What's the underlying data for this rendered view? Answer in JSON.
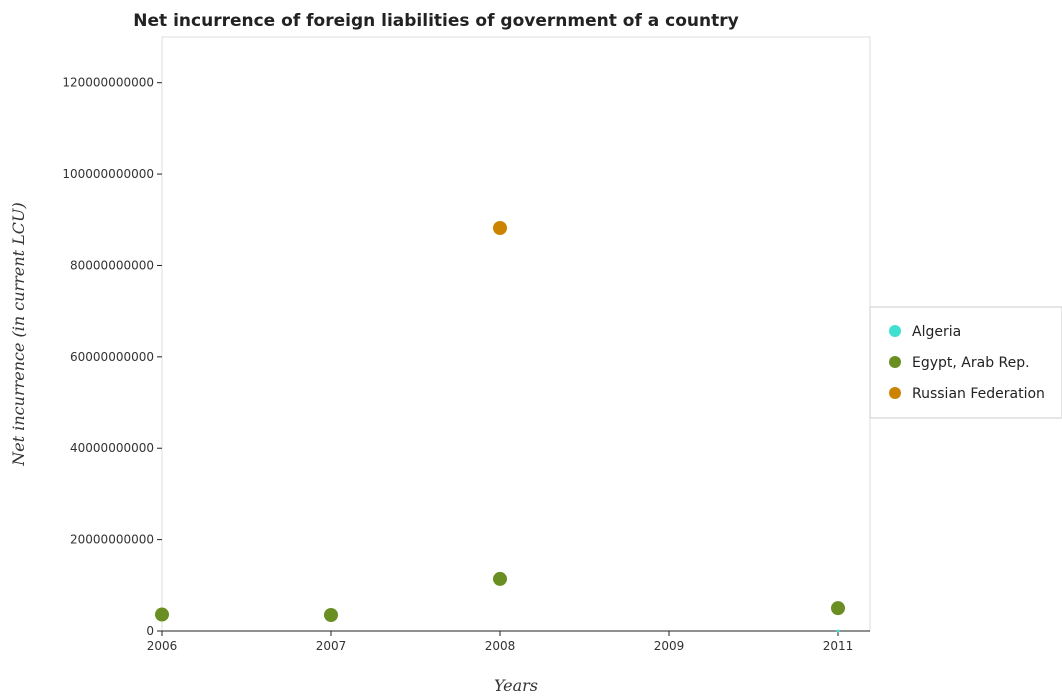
{
  "chart_data": {
    "type": "scatter",
    "title": "Net incurrence of foreign liabilities of government of a country",
    "xlabel": "Years",
    "ylabel": "Net incurrence (in current LCU)",
    "categories": [
      "2006",
      "2007",
      "2008",
      "2009",
      "2011"
    ],
    "ylim": [
      0,
      130000000000
    ],
    "yticks": [
      0,
      20000000000,
      40000000000,
      60000000000,
      80000000000,
      100000000000,
      120000000000
    ],
    "ytick_labels": [
      "0",
      "20000000000",
      "40000000000",
      "60000000000",
      "80000000000",
      "100000000000",
      "120000000000"
    ],
    "grid": false,
    "legend_position": "right",
    "series": [
      {
        "name": "Algeria",
        "color": "#40e0d0",
        "values": [
          0,
          0,
          0,
          0,
          0
        ]
      },
      {
        "name": "Egypt, Arab Rep.",
        "color": "#6b8e23",
        "values": [
          3600000000,
          3500000000,
          11400000000,
          0,
          5000000000
        ]
      },
      {
        "name": "Russian Federation",
        "color": "#cc8400",
        "values": [
          0,
          0,
          88200000000,
          0,
          0
        ]
      }
    ]
  }
}
